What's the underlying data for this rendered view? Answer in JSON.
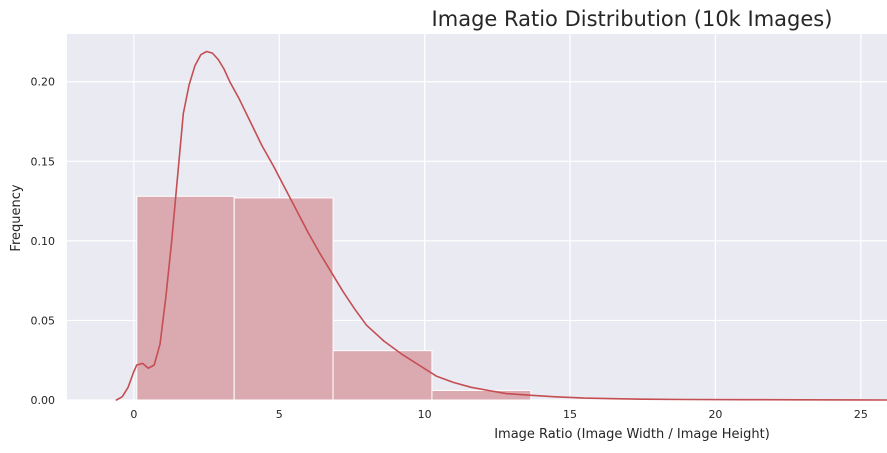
{
  "chart_data": {
    "type": "bar",
    "title": "Image Ratio Distribution (10k Images)",
    "xlabel": "Image Ratio (Image Width / Image Height)",
    "ylabel": "Frequency",
    "xlim": [
      -2.3,
      25.9
    ],
    "ylim": [
      0,
      0.23
    ],
    "xticks": [
      0,
      5,
      10,
      15,
      20,
      25
    ],
    "yticks": [
      0.0,
      0.05,
      0.1,
      0.15,
      0.2
    ],
    "xtick_labels": [
      "0",
      "5",
      "10",
      "15",
      "20",
      "25"
    ],
    "ytick_labels": [
      "0.00",
      "0.05",
      "0.10",
      "0.15",
      "0.20"
    ],
    "grid": true,
    "legend": "none",
    "colors": {
      "background": "#eaeaf2",
      "grid": "#ffffff",
      "bar_fill": "#dba9b0",
      "bar_edge": "#ffffff",
      "kde_line": "#c44e52"
    },
    "bins": [
      {
        "x0": 0.1,
        "x1": 3.45,
        "value": 0.128
      },
      {
        "x0": 3.45,
        "x1": 6.85,
        "value": 0.127
      },
      {
        "x0": 6.85,
        "x1": 10.25,
        "value": 0.031
      },
      {
        "x0": 10.25,
        "x1": 13.65,
        "value": 0.006
      }
    ],
    "series": [
      {
        "type": "line",
        "x": [
          -0.6,
          -0.4,
          -0.2,
          0.0,
          0.1,
          0.3,
          0.5,
          0.7,
          0.9,
          1.1,
          1.3,
          1.5,
          1.7,
          1.9,
          2.1,
          2.3,
          2.5,
          2.7,
          2.9,
          3.1,
          3.3,
          3.6,
          4.0,
          4.4,
          4.8,
          5.2,
          5.6,
          6.0,
          6.4,
          6.8,
          7.2,
          7.6,
          8.0,
          8.6,
          9.2,
          9.8,
          10.4,
          11.0,
          11.6,
          12.2,
          12.8,
          13.6,
          14.5,
          15.5,
          16.5,
          17.5,
          19.0,
          21.0,
          23.0,
          25.0,
          25.9
        ],
        "y": [
          0.0,
          0.002,
          0.008,
          0.018,
          0.022,
          0.023,
          0.02,
          0.022,
          0.035,
          0.065,
          0.1,
          0.14,
          0.18,
          0.198,
          0.21,
          0.217,
          0.219,
          0.218,
          0.214,
          0.208,
          0.2,
          0.19,
          0.175,
          0.16,
          0.147,
          0.133,
          0.119,
          0.105,
          0.092,
          0.08,
          0.068,
          0.057,
          0.047,
          0.037,
          0.029,
          0.022,
          0.015,
          0.011,
          0.008,
          0.006,
          0.004,
          0.003,
          0.002,
          0.0012,
          0.0008,
          0.0005,
          0.0003,
          0.0002,
          0.0001,
          5e-05,
          0.0
        ]
      }
    ]
  }
}
